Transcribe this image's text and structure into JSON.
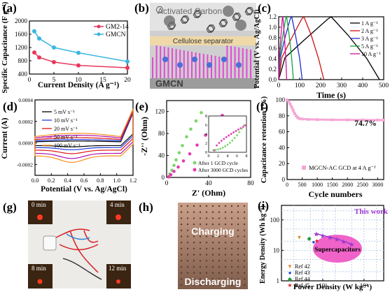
{
  "panels": {
    "a": {
      "letter": "(a)"
    },
    "b": {
      "letter": "(b)",
      "top_label": "Activated Carbon",
      "separator_label": "Cellulose separator",
      "bottom_label": "GMCN"
    },
    "c": {
      "letter": "(c)"
    },
    "d": {
      "letter": "(d)"
    },
    "e": {
      "letter": "(e)"
    },
    "f": {
      "letter": "(f)"
    },
    "g": {
      "letter": "(g)",
      "photo_labels": [
        "0 min",
        "4 min",
        "8 min",
        "12 min"
      ]
    },
    "h": {
      "letter": "(h)",
      "photo_labels": [
        "Charging",
        "Discharging"
      ]
    },
    "i": {
      "letter": "(i)"
    }
  },
  "colors": {
    "gm2": "#e8375a",
    "gmcn": "#39b6e0",
    "c1": "#000000",
    "c2": "#d01010",
    "c3": "#1f2fd0",
    "c4": "#12a43a",
    "c5": "#d0109a",
    "cv5": "#000000",
    "cv10": "#1f3fe0",
    "cv20": "#e01515",
    "cv50": "#b011b0",
    "cv100": "#f5901a",
    "eis1": "#7cd66a",
    "eis2": "#e43cb0",
    "retention": "#f5a7d6",
    "r42": "#e58a2b",
    "r43": "#2040e0",
    "r44": "#1f9a3a",
    "r45": "#e01a2a",
    "thiswork": "#9c3bd0",
    "supercap": "#f063c8"
  },
  "chart_data": [
    {
      "type": "line",
      "title": "",
      "xlabel": "Current Density (A g⁻¹)",
      "ylabel": "Specific Capacitance (F g⁻¹)",
      "xlim": [
        0,
        20
      ],
      "ylim": [
        400,
        2000
      ],
      "x_ticks": [
        0,
        5,
        10,
        15,
        20
      ],
      "y_ticks": [
        400,
        800,
        1200,
        1600,
        2000
      ],
      "legend_position": "top-right",
      "series": [
        {
          "name": "GM2-14",
          "x": [
            1,
            2,
            5,
            10,
            20
          ],
          "values": [
            1050,
            900,
            760,
            660,
            590
          ]
        },
        {
          "name": "GMCN",
          "x": [
            1,
            2,
            5,
            10,
            20
          ],
          "values": [
            1690,
            1470,
            1200,
            1040,
            780
          ]
        }
      ]
    },
    {
      "type": "line",
      "xlabel": "Time (s)",
      "ylabel": "Potential (V vs. Ag/AgCl)",
      "xlim": [
        0,
        500
      ],
      "ylim": [
        0.0,
        1.2
      ],
      "x_ticks": [
        0,
        100,
        200,
        300,
        400,
        500
      ],
      "y_ticks": [
        0.0,
        0.2,
        0.4,
        0.6,
        0.8,
        1.0,
        1.2
      ],
      "legend_position": "top-right",
      "series": [
        {
          "name": "1 A g⁻¹",
          "x": [
            0,
            30,
            120,
            235,
            250,
            330,
            420,
            480
          ],
          "values": [
            0.0,
            0.42,
            0.75,
            1.16,
            1.2,
            0.85,
            0.4,
            0.0
          ]
        },
        {
          "name": "2 A g⁻¹",
          "x": [
            0,
            15,
            60,
            110,
            120,
            155,
            190,
            215
          ],
          "values": [
            0.0,
            0.42,
            0.78,
            1.16,
            1.2,
            0.85,
            0.4,
            0.0
          ]
        },
        {
          "name": "3 A g⁻¹",
          "x": [
            0,
            8,
            30,
            55,
            62,
            80,
            100,
            112
          ],
          "values": [
            0.0,
            0.42,
            0.8,
            1.16,
            1.2,
            0.85,
            0.4,
            0.0
          ]
        },
        {
          "name": "5 A g⁻¹",
          "x": [
            0,
            5,
            18,
            33,
            38,
            50,
            62,
            70
          ],
          "values": [
            0.0,
            0.42,
            0.8,
            1.16,
            1.2,
            0.85,
            0.4,
            0.0
          ]
        },
        {
          "name": "10 A g⁻¹",
          "x": [
            0,
            3,
            10,
            17,
            20,
            27,
            34,
            38
          ],
          "values": [
            0.0,
            0.42,
            0.8,
            1.16,
            1.2,
            0.85,
            0.4,
            0.0
          ]
        }
      ]
    },
    {
      "type": "line",
      "xlabel": "Potential (V vs. Ag/AgCl)",
      "ylabel": "Current (A)",
      "xlim": [
        0.0,
        1.2
      ],
      "ylim": [
        -0.0003,
        0.0004
      ],
      "x_ticks": [
        0.0,
        0.2,
        0.4,
        0.6,
        0.8,
        1.0,
        1.2
      ],
      "y_ticks": [
        -0.0002,
        0.0,
        0.0002,
        0.0004
      ],
      "legend_position": "top-left",
      "series": [
        {
          "name": "5 mV s⁻¹",
          "scale": 0.2
        },
        {
          "name": "10 mV s⁻¹",
          "scale": 0.35
        },
        {
          "name": "20 mV s⁻¹",
          "scale": 0.55
        },
        {
          "name": "50 mV s⁻¹",
          "scale": 0.8
        },
        {
          "name": "100 mV s⁻¹",
          "scale": 1.0
        }
      ]
    },
    {
      "type": "scatter",
      "xlabel": "Z' (Ohm)",
      "ylabel": "-Z'' (Ohm)",
      "xlim": [
        0,
        80
      ],
      "ylim": [
        0,
        140
      ],
      "x_ticks": [
        0,
        40,
        80
      ],
      "y_ticks": [
        0,
        40,
        80,
        120
      ],
      "legend_position": "bottom",
      "inset": {
        "xlim": [
          0,
          8
        ],
        "ylim": [
          0,
          8
        ],
        "x_ticks": [
          0,
          2,
          4,
          6,
          8
        ],
        "y_ticks": [
          0,
          2,
          4,
          6,
          8
        ]
      },
      "series": [
        {
          "name": "After 1 GCD cycle",
          "x": [
            2,
            3,
            5,
            7,
            9,
            12,
            15,
            19,
            23,
            28,
            33
          ],
          "values": [
            1,
            6,
            13,
            22,
            32,
            45,
            58,
            74,
            88,
            103,
            118
          ]
        },
        {
          "name": "After 3000 GCD cycles",
          "x": [
            2,
            4,
            7,
            11,
            16,
            22,
            29,
            37,
            45,
            53
          ],
          "values": [
            1,
            5,
            11,
            19,
            30,
            43,
            59,
            77,
            95,
            113
          ]
        }
      ]
    },
    {
      "type": "scatter",
      "xlabel": "Cycle numbers",
      "ylabel": "Capacitance retention (%)",
      "xlim": [
        0,
        3200
      ],
      "ylim": [
        0,
        100
      ],
      "x_ticks": [
        0,
        500,
        1000,
        1500,
        2000,
        2500,
        3000
      ],
      "y_ticks": [
        0,
        20,
        40,
        60,
        80,
        100
      ],
      "annotation": "74.7%",
      "legend_position": "bottom",
      "series": [
        {
          "name": "MGCN-AC GCD at 4 A g⁻¹",
          "x": [
            0,
            50,
            100,
            150,
            200,
            250,
            300,
            350,
            400,
            500,
            700,
            1000,
            1500,
            2000,
            2500,
            3000,
            3200
          ],
          "values": [
            100,
            98,
            95,
            91,
            87,
            83,
            80,
            78,
            76.5,
            76,
            75.5,
            75.3,
            75,
            74.9,
            74.8,
            74.7,
            74.7
          ]
        }
      ]
    },
    {
      "type": "scatter",
      "xlabel": "Power Density (W kg⁻¹)",
      "ylabel": "Energy Density (Wh kg⁻¹)",
      "x_scale": "log",
      "y_scale": "log",
      "xlim": [
        100,
        30000
      ],
      "ylim": [
        1,
        300
      ],
      "x_ticks": [
        1000,
        10000
      ],
      "x_tick_labels": [
        "10³",
        "10⁴"
      ],
      "y_ticks": [
        1,
        10,
        100
      ],
      "y_tick_labels": [
        "1",
        "10",
        "100"
      ],
      "annotation": "This work",
      "region_label": "Supercapacitors",
      "legend_position": "bottom-left",
      "series": [
        {
          "name": "This work",
          "x": [
            700,
            1000,
            1500,
            2200,
            3200,
            5000
          ],
          "values": [
            35,
            31,
            27,
            24,
            20,
            16
          ]
        },
        {
          "name": "Ref 42",
          "x": [
            270
          ],
          "values": [
            27
          ]
        },
        {
          "name": "Ref 43",
          "x": [
            600
          ],
          "values": [
            19
          ]
        },
        {
          "name": "Ref 44",
          "x": [
            470
          ],
          "values": [
            25
          ]
        },
        {
          "name": "Ref 45",
          "x": [
            720
          ],
          "values": [
            21
          ]
        }
      ]
    }
  ]
}
